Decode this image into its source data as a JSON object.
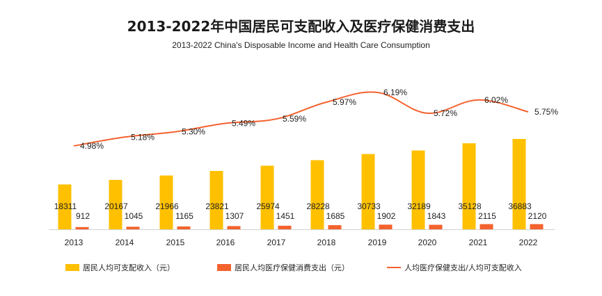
{
  "chart_data": {
    "type": "bar",
    "title": "2013-2022年中国居民可支配收入及医疗保健消费支出",
    "subtitle": "2013-2022  China's Disposable Income and Health Care Consumption",
    "categories": [
      "2013",
      "2014",
      "2015",
      "2016",
      "2017",
      "2018",
      "2019",
      "2020",
      "2021",
      "2022"
    ],
    "series": [
      {
        "name": "居民人均可支配收入（元）",
        "type": "bar",
        "color": "#FFC000",
        "values": [
          18311,
          20167,
          21966,
          23821,
          25974,
          28228,
          30733,
          32189,
          35128,
          36883
        ]
      },
      {
        "name": "居民人均医疗保健消费支出（元）",
        "type": "bar",
        "color": "#F4622E",
        "values": [
          912,
          1045,
          1165,
          1307,
          1451,
          1685,
          1902,
          1843,
          2115,
          2120
        ]
      },
      {
        "name": "人均医疗保健支出/人均可支配收入",
        "type": "line",
        "color": "#F4622E",
        "values": [
          4.98,
          5.18,
          5.3,
          5.49,
          5.59,
          5.97,
          6.19,
          5.72,
          6.02,
          5.75
        ],
        "labels": [
          "4.98%",
          "5.18%",
          "5.30%",
          "5.49%",
          "5.59%",
          "5.97%",
          "6.19%",
          "5.72%",
          "6.02%",
          "5.75%"
        ]
      }
    ],
    "legend_position": "bottom",
    "grid": false
  }
}
